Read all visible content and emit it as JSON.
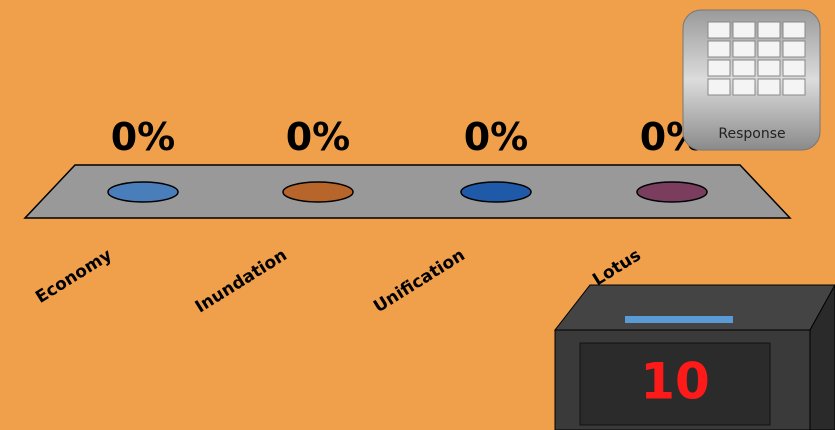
{
  "chart_data": {
    "type": "bar",
    "categories": [
      "Economy",
      "Inundation",
      "Unification",
      "Lotus"
    ],
    "values": [
      0,
      0,
      0,
      0
    ],
    "value_labels": [
      "0%",
      "0%",
      "0%",
      "0%"
    ],
    "colors": [
      "#4A7EBB",
      "#B7652A",
      "#1E5AA8",
      "#7A3D5E"
    ]
  },
  "response_button": "Response",
  "countdown": "10"
}
